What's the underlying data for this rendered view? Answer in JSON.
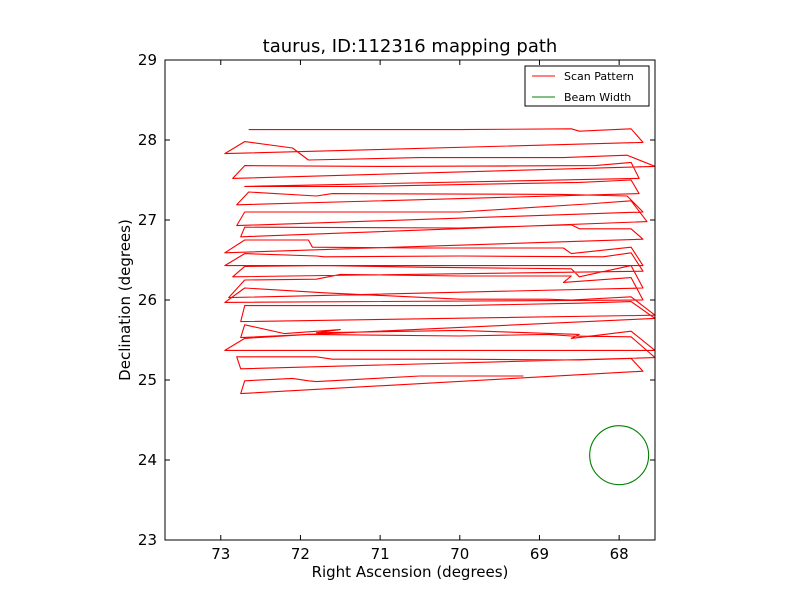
{
  "chart_data": {
    "type": "line",
    "title": "taurus, ID:112316 mapping path",
    "xlabel": "Right Ascension (degrees)",
    "ylabel": "Declination (degrees)",
    "xlim": [
      73.7,
      67.55
    ],
    "ylim": [
      23,
      29
    ],
    "x_inverted": true,
    "xticks": [
      73,
      72,
      71,
      70,
      69,
      68
    ],
    "xtick_labels": [
      "73",
      "72",
      "71",
      "70",
      "69",
      "68"
    ],
    "yticks": [
      23,
      24,
      25,
      26,
      27,
      28,
      29
    ],
    "ytick_labels": [
      "23",
      "24",
      "25",
      "26",
      "27",
      "28",
      "29"
    ],
    "grid": false,
    "legend_position": "top-right",
    "series": [
      {
        "name": "Scan Pattern",
        "color": "#ff0000",
        "x": [
          72.65,
          70.0,
          68.6,
          68.5,
          68.3,
          67.85,
          67.7,
          72.95,
          72.7,
          72.1,
          71.9,
          70.5,
          68.7,
          67.9,
          67.55,
          72.85,
          72.7,
          71.0,
          68.3,
          67.85,
          67.75,
          72.7,
          71.9,
          71.2,
          68.5,
          67.85,
          67.75,
          72.8,
          72.65,
          71.8,
          71.6,
          68.7,
          67.9,
          67.7,
          72.8,
          72.7,
          70.0,
          68.4,
          67.85,
          67.65,
          72.75,
          72.7,
          70.0,
          68.6,
          68.5,
          67.85,
          67.7,
          72.95,
          72.7,
          71.9,
          71.85,
          70.5,
          68.7,
          68.6,
          67.85,
          67.7,
          72.95,
          72.7,
          71.8,
          71.7,
          70.0,
          68.2,
          67.85,
          67.7,
          72.85,
          72.7,
          71.7,
          70.5,
          68.6,
          68.5,
          67.85,
          67.7,
          72.9,
          72.7,
          71.8,
          71.5,
          70.0,
          68.6,
          68.7,
          67.85,
          67.7,
          72.95,
          72.7,
          71.7,
          70.0,
          68.9,
          68.6,
          67.85,
          67.55,
          72.75,
          72.7,
          70.0,
          68.5,
          67.85,
          67.55,
          72.75,
          72.7,
          72.2,
          71.5,
          71.8,
          70.0,
          68.5,
          68.6,
          67.85,
          67.55,
          72.95,
          72.7,
          71.9,
          70.0,
          68.9,
          68.6,
          67.85,
          67.55,
          72.75,
          72.8,
          71.8,
          71.6,
          70.0,
          68.5,
          67.85,
          67.7,
          72.75,
          72.7,
          72.1,
          71.9,
          71.8,
          70.5,
          69.2
        ],
        "y": [
          28.13,
          28.13,
          28.14,
          28.11,
          28.12,
          28.14,
          27.97,
          27.83,
          27.98,
          27.9,
          27.75,
          27.78,
          27.78,
          27.81,
          27.67,
          27.52,
          27.68,
          27.67,
          27.68,
          27.72,
          27.52,
          27.42,
          27.42,
          27.42,
          27.47,
          27.5,
          27.33,
          27.19,
          27.35,
          27.3,
          27.33,
          27.32,
          27.3,
          27.1,
          26.93,
          27.1,
          27.1,
          27.2,
          27.24,
          26.98,
          26.79,
          26.91,
          26.9,
          26.94,
          26.89,
          26.89,
          26.76,
          26.59,
          26.75,
          26.75,
          26.66,
          26.65,
          26.65,
          26.58,
          26.66,
          26.43,
          26.43,
          26.58,
          26.55,
          26.54,
          26.55,
          26.54,
          26.59,
          26.36,
          26.29,
          26.42,
          26.43,
          26.41,
          26.39,
          26.29,
          26.43,
          26.15,
          26.03,
          26.25,
          26.26,
          26.32,
          26.3,
          26.3,
          26.22,
          26.28,
          26.0,
          25.97,
          26.15,
          26.09,
          26.01,
          26.01,
          26.0,
          26.04,
          25.81,
          25.73,
          25.93,
          25.93,
          25.96,
          25.98,
          25.77,
          25.53,
          25.69,
          25.58,
          25.63,
          25.59,
          25.62,
          25.57,
          25.52,
          25.61,
          25.37,
          25.37,
          25.52,
          25.57,
          25.55,
          25.57,
          25.55,
          25.54,
          25.28,
          25.14,
          25.29,
          25.29,
          25.26,
          25.26,
          25.25,
          25.27,
          25.11,
          24.83,
          24.99,
          25.02,
          24.99,
          24.98,
          25.05,
          25.05
        ]
      },
      {
        "name": "Beam Width",
        "color": "#008000",
        "shape": "circle",
        "center": [
          68.0,
          24.06
        ],
        "radius": 0.37
      }
    ]
  }
}
